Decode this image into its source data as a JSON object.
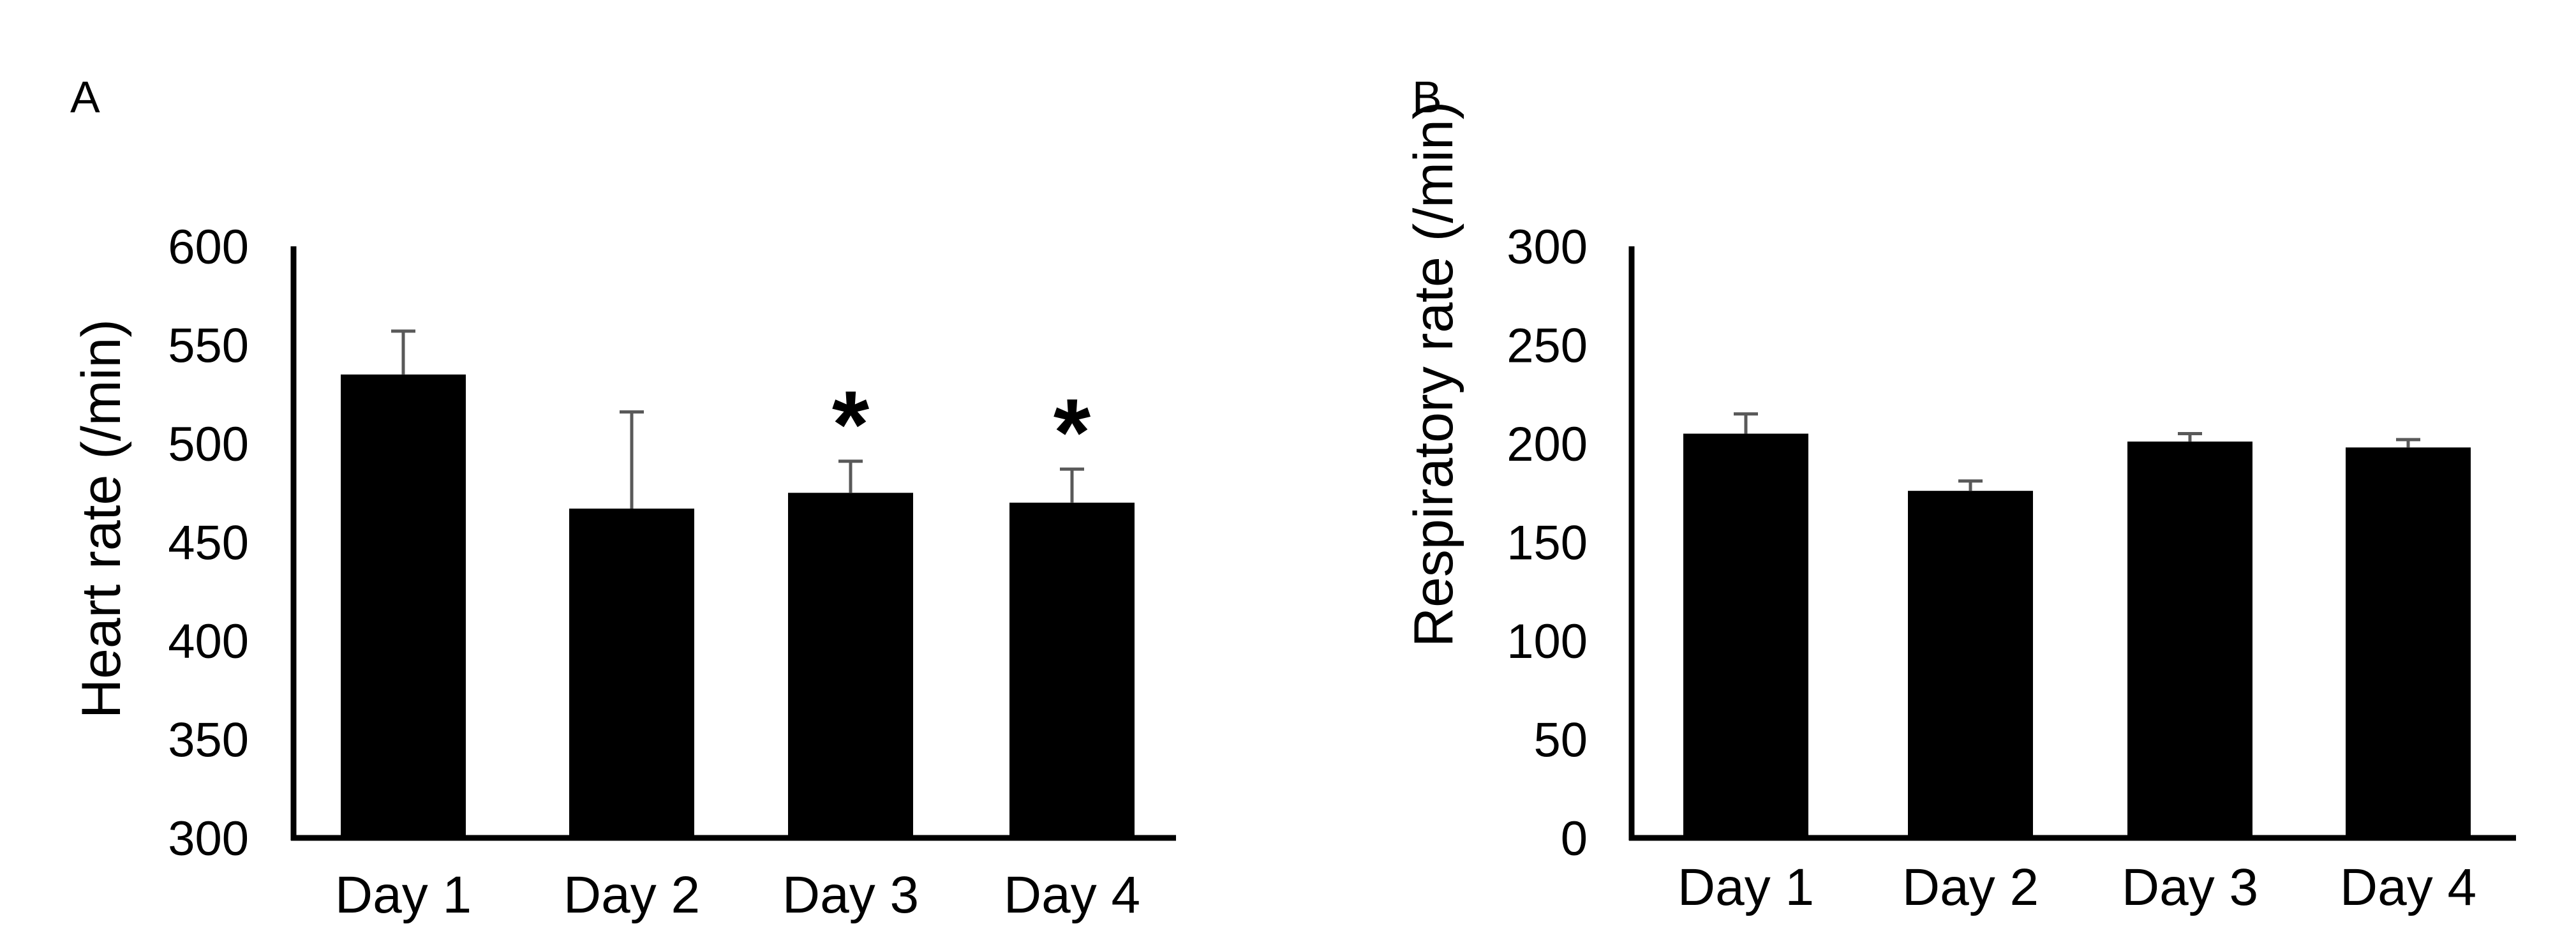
{
  "chart_data": [
    {
      "type": "bar",
      "panel_label": "A",
      "ylabel": "Heart rate (/min)",
      "xlabel": "",
      "categories": [
        "Day 1",
        "Day 2",
        "Day 3",
        "Day 4"
      ],
      "values": [
        535,
        467,
        475,
        470
      ],
      "error_upper": [
        557,
        516,
        491,
        487
      ],
      "ylim": [
        300,
        600
      ],
      "yticks": [
        "300",
        "350",
        "400",
        "450",
        "500",
        "550",
        "600"
      ],
      "significance": [
        "",
        "",
        "*",
        "*"
      ],
      "grid": false,
      "bar_color": "#000000",
      "error_color": "#595959"
    },
    {
      "type": "bar",
      "panel_label": "B",
      "ylabel": "Respiratory rate (/min)",
      "xlabel": "",
      "categories": [
        "Day 1",
        "Day 2",
        "Day 3",
        "Day 4"
      ],
      "values": [
        205,
        176,
        201,
        198
      ],
      "error_upper": [
        215,
        181,
        205,
        202
      ],
      "ylim": [
        0,
        300
      ],
      "yticks": [
        "0",
        "50",
        "100",
        "150",
        "200",
        "250",
        "300"
      ],
      "significance": [
        "",
        "",
        "",
        ""
      ],
      "grid": false,
      "bar_color": "#000000",
      "error_color": "#595959"
    }
  ]
}
